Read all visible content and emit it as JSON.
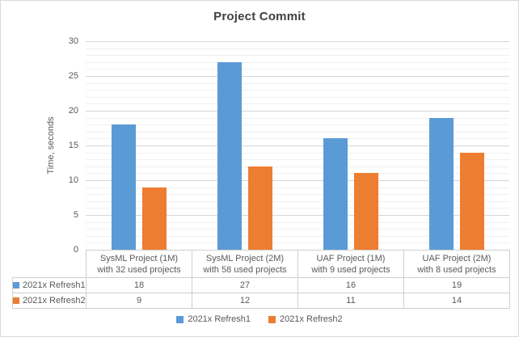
{
  "chart_data": {
    "type": "bar",
    "title": "Project Commit",
    "xlabel": "",
    "ylabel": "Time, seconds",
    "ylim": [
      0,
      30
    ],
    "y_ticks": [
      0,
      5,
      10,
      15,
      20,
      25,
      30
    ],
    "y_major_unit": 5,
    "y_minor_unit": 1,
    "grid": "horizontal major and minor gridlines",
    "legend_position": "bottom",
    "data_table": true,
    "categories": [
      "SysML Project (1M)\nwith 32 used projects",
      "SysML Project (2M)\nwith 58 used projects",
      "UAF Project (1M)\nwith 9 used projects",
      "UAF Project (2M)\nwith 8 used projects"
    ],
    "series": [
      {
        "name": "2021x Refresh1",
        "color": "#5B9BD5",
        "values": [
          18,
          27,
          16,
          19
        ]
      },
      {
        "name": "2021x Refresh2",
        "color": "#ED7D31",
        "values": [
          9,
          12,
          11,
          14
        ]
      }
    ]
  },
  "styles": {
    "series_colors": [
      "#5B9BD5",
      "#ED7D31"
    ],
    "major_grid_color": "#D6D6D6",
    "minor_grid_color": "#F0F0F0",
    "table_border_color": "#CFCFCF",
    "text_color": "#595959",
    "title_color": "#404040",
    "frame_border_color": "#D9D9D9",
    "background_color": "#FFFFFF"
  }
}
